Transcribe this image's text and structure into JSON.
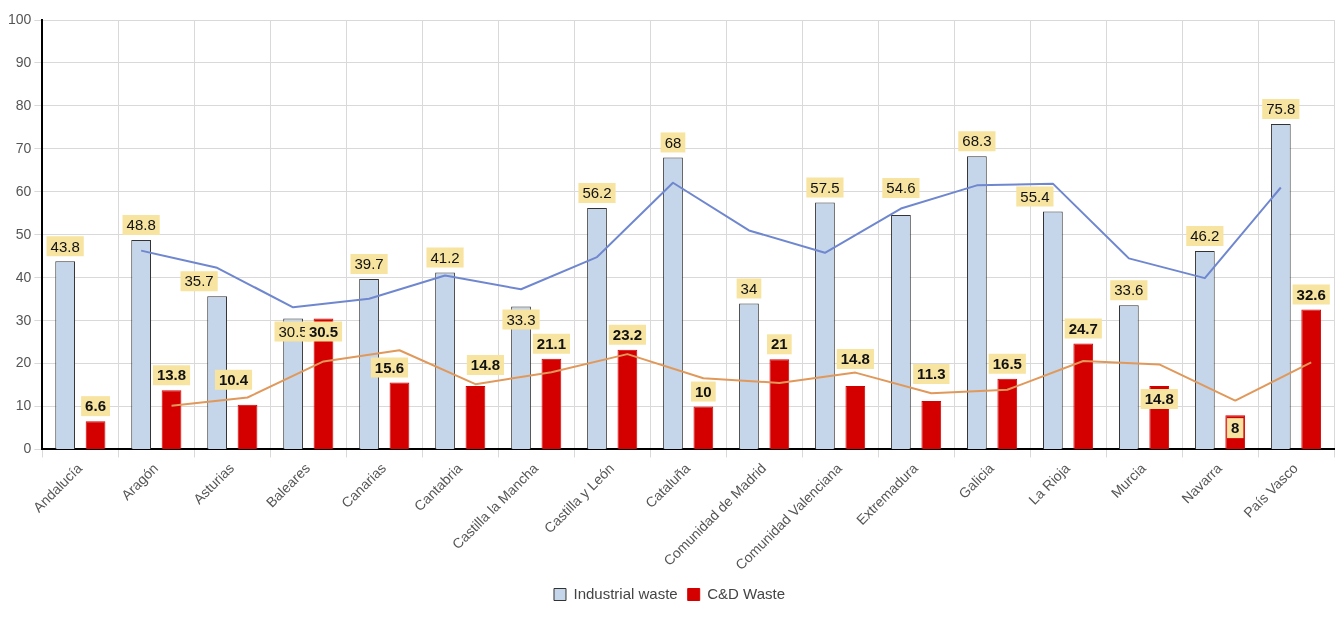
{
  "chart_data": {
    "type": "bar",
    "categories": [
      "Andalucía",
      "Aragón",
      "Asturias",
      "Baleares",
      "Canarias",
      "Cantabria",
      "Castilla la Mancha",
      "Castilla y León",
      "Cataluña",
      "Comunidad de Madrid",
      "Comunidad Valenciana",
      "Extremadura",
      "Galicia",
      "La Rioja",
      "Murcia",
      "Navarra",
      "País Vasco"
    ],
    "series": [
      {
        "name": "Industrial waste",
        "color": "#c5d5ea",
        "values": [
          43.8,
          48.8,
          35.7,
          30.5,
          39.7,
          41.2,
          33.3,
          56.2,
          68,
          34,
          57.5,
          54.6,
          68.3,
          55.4,
          33.6,
          46.2,
          75.8
        ],
        "value_labels": [
          "43.8",
          "48.8",
          "35.7",
          "30.5",
          "39.7",
          "41.2",
          "33.3",
          "56.2",
          "68",
          "34",
          "57.5",
          "54.6",
          "68.3",
          "55.4",
          "33.6",
          "46.2",
          "75.8"
        ]
      },
      {
        "name": "C&D Waste",
        "color": "#d40000",
        "values": [
          6.6,
          13.8,
          10.4,
          30.5,
          15.6,
          14.8,
          21.1,
          23.2,
          10,
          21,
          14.8,
          11.3,
          16.5,
          24.7,
          14.8,
          8,
          32.6
        ],
        "value_labels": [
          "6.6",
          "13.8",
          "10.4",
          "30.5",
          "15.6",
          "14.8",
          "21.1",
          "23.2",
          "10",
          "21",
          "14.8",
          "11.3",
          "16.5",
          "24.7",
          "14.8",
          "8",
          "32.6"
        ]
      },
      {
        "type": "line",
        "color": "#6f87cf",
        "values": [
          null,
          46.3,
          42.3,
          33.1,
          35.1,
          40.5,
          37.3,
          44.8,
          62.1,
          51,
          45.8,
          56.1,
          61.5,
          61.9,
          44.5,
          39.9,
          61
        ]
      },
      {
        "type": "line",
        "color": "#e0995a",
        "values": [
          null,
          10.2,
          12.1,
          20.5,
          23.1,
          15.2,
          18,
          22.2,
          16.6,
          15.5,
          17.9,
          13.1,
          13.9,
          20.6,
          19.8,
          11.4,
          20.3
        ]
      }
    ],
    "ylim": [
      0,
      100
    ],
    "yticks": [
      0,
      10,
      20,
      30,
      40,
      50,
      60,
      70,
      80,
      90,
      100
    ],
    "grid": true,
    "legend": "bottom",
    "marker": "none",
    "line_style": "solid"
  }
}
